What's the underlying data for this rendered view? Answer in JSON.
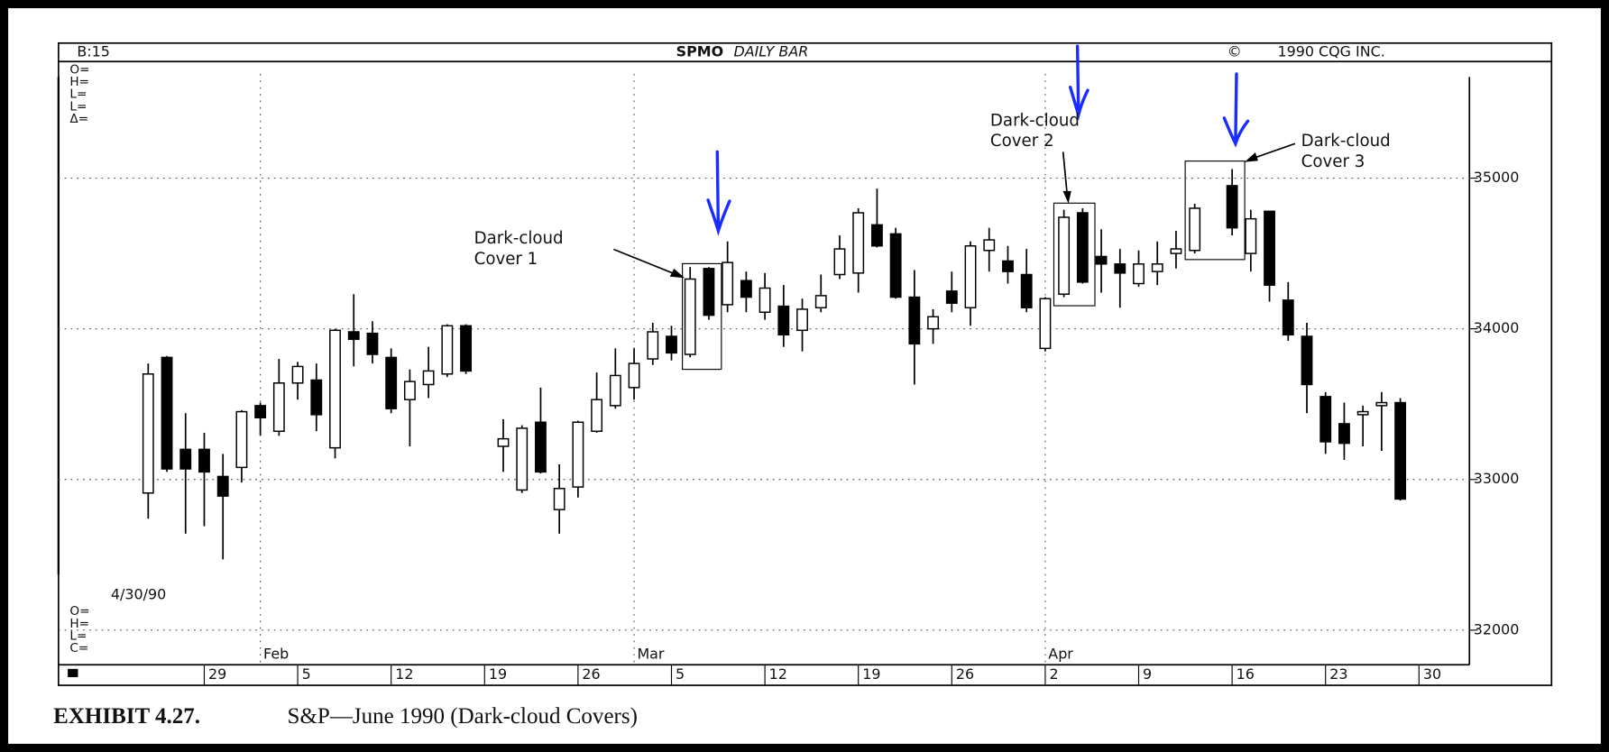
{
  "chart_data": {
    "type": "candlestick",
    "header": {
      "left": "B:15",
      "center_a": "SPMO",
      "center_b": "DAILY BAR",
      "right_a": "©",
      "right_b": "1990 CQG INC."
    },
    "top_labels": [
      "O=",
      "H=",
      "L=",
      "L=",
      "Δ="
    ],
    "bottom_labels": [
      "O=",
      "H=",
      "L=",
      "C="
    ],
    "date": "4/30/90",
    "annotations": [
      {
        "lines": [
          "Dark-cloud",
          "Cover 1"
        ]
      },
      {
        "lines": [
          "Dark-cloud",
          "Cover 2"
        ]
      },
      {
        "lines": [
          "Dark-cloud",
          "Cover 3"
        ]
      }
    ],
    "caption": {
      "label": "EXHIBIT 4.27.",
      "text": "S&P—June 1990 (Dark-cloud Covers)"
    },
    "up_color": "#ffffff",
    "down_color": "#000000",
    "open": [
      32910,
      33810,
      33200,
      33200,
      33020,
      33080,
      33490,
      33320,
      33640,
      33660,
      33210,
      33980,
      33970,
      33810,
      33530,
      33630,
      33700,
      34020,
      null,
      33220,
      32930,
      33380,
      32800,
      32950,
      33320,
      33490,
      33610,
      33800,
      33950,
      33830,
      34400,
      34160,
      34320,
      34110,
      34150,
      33990,
      34140,
      34360,
      34370,
      34690,
      34630,
      34210,
      34000,
      34250,
      34140,
      34520,
      34450,
      34360,
      33870,
      34230,
      34770,
      34480,
      34430,
      34300,
      34380,
      34500,
      34520,
      null,
      34950,
      34500,
      34780,
      34190,
      33950,
      33550,
      33370,
      33430,
      33490,
      33510
    ],
    "high": [
      33770,
      33820,
      33440,
      33310,
      33170,
      33460,
      33510,
      33800,
      33780,
      33770,
      34000,
      34230,
      34050,
      33870,
      33730,
      33880,
      34030,
      34030,
      null,
      33400,
      33360,
      33610,
      33100,
      33390,
      33710,
      33870,
      33870,
      34040,
      34020,
      34410,
      34410,
      34580,
      34380,
      34370,
      34290,
      34200,
      34360,
      34620,
      34800,
      34930,
      34670,
      34390,
      34130,
      34380,
      34580,
      34670,
      34550,
      34530,
      34210,
      34790,
      34800,
      34660,
      34530,
      34520,
      34580,
      34650,
      34830,
      null,
      35060,
      34790,
      34780,
      34310,
      34040,
      33580,
      33510,
      33490,
      33580,
      33540
    ],
    "low": [
      32740,
      33050,
      32640,
      32690,
      32470,
      32980,
      33290,
      33290,
      33530,
      33320,
      33140,
      33750,
      33770,
      33440,
      33220,
      33540,
      33680,
      33700,
      null,
      33050,
      32910,
      33040,
      32640,
      32880,
      33310,
      33470,
      33530,
      33760,
      33790,
      33810,
      34060,
      34110,
      34110,
      34060,
      33880,
      33850,
      34110,
      34330,
      34240,
      34540,
      34200,
      33630,
      33900,
      34110,
      34020,
      34380,
      34300,
      34110,
      33850,
      34210,
      34300,
      34240,
      34140,
      34280,
      34290,
      34400,
      34500,
      null,
      34620,
      34380,
      34180,
      33920,
      33440,
      33170,
      33130,
      33220,
      33190,
      32860
    ],
    "close": [
      33700,
      33070,
      33070,
      33050,
      32890,
      33450,
      33410,
      33640,
      33750,
      33430,
      33990,
      33930,
      33830,
      33470,
      33650,
      33720,
      34020,
      33720,
      null,
      33270,
      33340,
      33050,
      32940,
      33380,
      33530,
      33690,
      33770,
      33980,
      33840,
      34330,
      34090,
      34440,
      34210,
      34270,
      33960,
      34130,
      34220,
      34530,
      34770,
      34550,
      34210,
      33900,
      34080,
      34170,
      34550,
      34590,
      34380,
      34140,
      34200,
      34740,
      34310,
      34430,
      34370,
      34430,
      34430,
      34530,
      34800,
      null,
      34670,
      34730,
      34290,
      33960,
      33630,
      33250,
      33240,
      33450,
      33510,
      32870
    ],
    "xlim": [
      -4.8,
      70.7
    ],
    "xticks": [
      {
        "value": 3,
        "label": "29"
      },
      {
        "value": 8,
        "label": "5"
      },
      {
        "value": 13,
        "label": "12"
      },
      {
        "value": 18,
        "label": "19"
      },
      {
        "value": 23,
        "label": "26"
      },
      {
        "value": 28,
        "label": "5"
      },
      {
        "value": 33,
        "label": "12"
      },
      {
        "value": 38,
        "label": "19"
      },
      {
        "value": 43,
        "label": "26"
      },
      {
        "value": 48,
        "label": "2"
      },
      {
        "value": 53,
        "label": "9"
      },
      {
        "value": 58,
        "label": "16"
      },
      {
        "value": 63,
        "label": "23"
      },
      {
        "value": 68,
        "label": "30"
      }
    ],
    "month_ticks": [
      {
        "value": 6,
        "label": "Feb"
      },
      {
        "value": 26,
        "label": "Mar"
      },
      {
        "value": 48,
        "label": "Apr"
      }
    ],
    "ylim": [
      31770,
      35760
    ],
    "yticks": [
      32000,
      33000,
      34000,
      35000
    ]
  }
}
